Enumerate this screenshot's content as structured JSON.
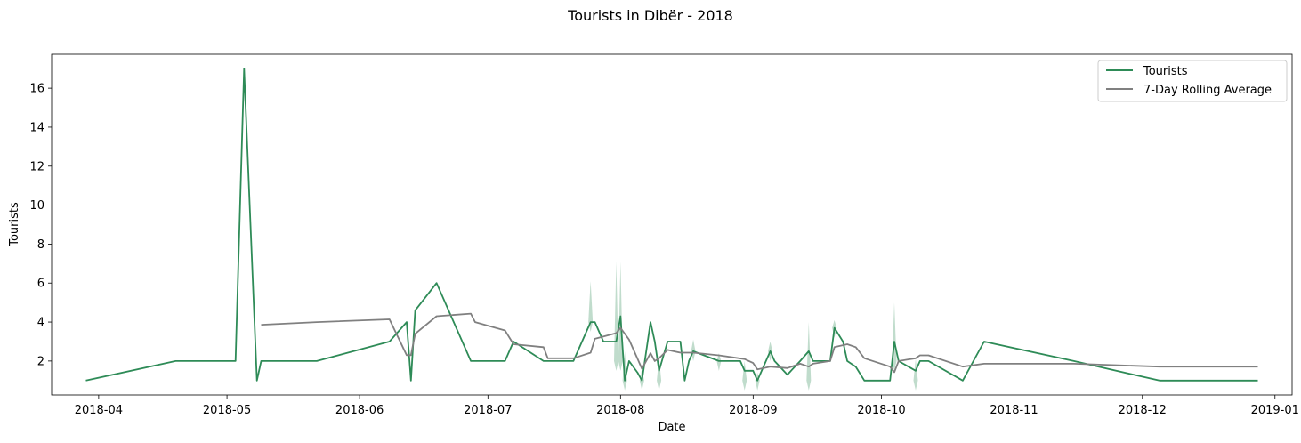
{
  "chart_data": {
    "type": "line",
    "title": "Tourists in Dibër - 2018",
    "xlabel": "Date",
    "ylabel": "Tourists",
    "xlim": [
      "2018-03-21",
      "2019-01-05"
    ],
    "ylim": [
      0.26,
      17.74
    ],
    "x_ticks": [
      "2018-04-01",
      "2018-05-01",
      "2018-06-01",
      "2018-07-01",
      "2018-08-01",
      "2018-09-01",
      "2018-10-01",
      "2018-11-01",
      "2018-12-01",
      "2019-01-01"
    ],
    "x_tick_labels": [
      "2018-04",
      "2018-05",
      "2018-06",
      "2018-07",
      "2018-08",
      "2018-09",
      "2018-10",
      "2018-11",
      "2018-12",
      "2019-01"
    ],
    "y_ticks": [
      2,
      4,
      6,
      8,
      10,
      12,
      14,
      16
    ],
    "grid": false,
    "legend": "top-right",
    "series": [
      {
        "name": "Tourists",
        "color": "#2e8b57",
        "points": [
          [
            "2018-03-29",
            1
          ],
          [
            "2018-04-19",
            2
          ],
          [
            "2018-05-03",
            2
          ],
          [
            "2018-05-05",
            17
          ],
          [
            "2018-05-08",
            1
          ],
          [
            "2018-05-09",
            2
          ],
          [
            "2018-05-22",
            2
          ],
          [
            "2018-06-08",
            3
          ],
          [
            "2018-06-12",
            4
          ],
          [
            "2018-06-13",
            1
          ],
          [
            "2018-06-14",
            4.6
          ],
          [
            "2018-06-19",
            6
          ],
          [
            "2018-06-27",
            2
          ],
          [
            "2018-07-05",
            2
          ],
          [
            "2018-07-07",
            3
          ],
          [
            "2018-07-14",
            2
          ],
          [
            "2018-07-21",
            2
          ],
          [
            "2018-07-25",
            4
          ],
          [
            "2018-07-26",
            4
          ],
          [
            "2018-07-28",
            3
          ],
          [
            "2018-07-31",
            3
          ],
          [
            "2018-08-01",
            4.3
          ],
          [
            "2018-08-02",
            1
          ],
          [
            "2018-08-03",
            2
          ],
          [
            "2018-08-05",
            1.4
          ],
          [
            "2018-08-06",
            1
          ],
          [
            "2018-08-08",
            4
          ],
          [
            "2018-08-09",
            3
          ],
          [
            "2018-08-10",
            1.5
          ],
          [
            "2018-08-12",
            3
          ],
          [
            "2018-08-15",
            3
          ],
          [
            "2018-08-16",
            1
          ],
          [
            "2018-08-17",
            2
          ],
          [
            "2018-08-18",
            2.5
          ],
          [
            "2018-08-24",
            2
          ],
          [
            "2018-08-29",
            2
          ],
          [
            "2018-08-30",
            1.5
          ],
          [
            "2018-09-01",
            1.5
          ],
          [
            "2018-09-02",
            1
          ],
          [
            "2018-09-05",
            2.5
          ],
          [
            "2018-09-06",
            2
          ],
          [
            "2018-09-09",
            1.3
          ],
          [
            "2018-09-12",
            2
          ],
          [
            "2018-09-14",
            2.5
          ],
          [
            "2018-09-15",
            2
          ],
          [
            "2018-09-19",
            2
          ],
          [
            "2018-09-20",
            3.7
          ],
          [
            "2018-09-22",
            3
          ],
          [
            "2018-09-23",
            2
          ],
          [
            "2018-09-25",
            1.7
          ],
          [
            "2018-09-27",
            1
          ],
          [
            "2018-10-03",
            1
          ],
          [
            "2018-10-04",
            3
          ],
          [
            "2018-10-05",
            2
          ],
          [
            "2018-10-09",
            1.5
          ],
          [
            "2018-10-10",
            2
          ],
          [
            "2018-10-12",
            2
          ],
          [
            "2018-10-20",
            1
          ],
          [
            "2018-10-25",
            3
          ],
          [
            "2018-11-15",
            2
          ],
          [
            "2018-12-05",
            1
          ],
          [
            "2018-12-28",
            1
          ]
        ],
        "band": [
          [
            "2018-07-25",
            4,
            6.1
          ],
          [
            "2018-07-31",
            2,
            7.1
          ],
          [
            "2018-08-01",
            2,
            7.1
          ],
          [
            "2018-08-02",
            1,
            2.5
          ],
          [
            "2018-08-06",
            1,
            1.6
          ],
          [
            "2018-08-10",
            1,
            2.2
          ],
          [
            "2018-08-18",
            2.5,
            3.1
          ],
          [
            "2018-08-24",
            2,
            2.4
          ],
          [
            "2018-08-30",
            1,
            2.0
          ],
          [
            "2018-09-02",
            1,
            1.4
          ],
          [
            "2018-09-05",
            2.5,
            3.0
          ],
          [
            "2018-09-14",
            1,
            4.0
          ],
          [
            "2018-09-20",
            3.7,
            4.1
          ],
          [
            "2018-10-04",
            2,
            5.0
          ],
          [
            "2018-10-09",
            1,
            2.1
          ]
        ]
      },
      {
        "name": "7-Day Rolling Average",
        "color": "#808080",
        "points": [
          [
            "2018-05-09",
            3.86
          ],
          [
            "2018-05-22",
            4.0
          ],
          [
            "2018-06-08",
            4.14
          ],
          [
            "2018-06-12",
            2.3
          ],
          [
            "2018-06-13",
            2.3
          ],
          [
            "2018-06-14",
            3.4
          ],
          [
            "2018-06-19",
            4.3
          ],
          [
            "2018-06-27",
            4.43
          ],
          [
            "2018-06-28",
            4.0
          ],
          [
            "2018-07-05",
            3.57
          ],
          [
            "2018-07-07",
            2.86
          ],
          [
            "2018-07-14",
            2.71
          ],
          [
            "2018-07-15",
            2.14
          ],
          [
            "2018-07-21",
            2.14
          ],
          [
            "2018-07-25",
            2.43
          ],
          [
            "2018-07-26",
            3.14
          ],
          [
            "2018-07-31",
            3.43
          ],
          [
            "2018-08-01",
            3.7
          ],
          [
            "2018-08-03",
            3.1
          ],
          [
            "2018-08-06",
            1.6
          ],
          [
            "2018-08-08",
            2.4
          ],
          [
            "2018-08-09",
            2.0
          ],
          [
            "2018-08-10",
            2.14
          ],
          [
            "2018-08-12",
            2.57
          ],
          [
            "2018-08-15",
            2.43
          ],
          [
            "2018-08-18",
            2.43
          ],
          [
            "2018-08-24",
            2.29
          ],
          [
            "2018-08-30",
            2.1
          ],
          [
            "2018-09-01",
            1.9
          ],
          [
            "2018-09-02",
            1.57
          ],
          [
            "2018-09-05",
            1.71
          ],
          [
            "2018-09-09",
            1.64
          ],
          [
            "2018-09-12",
            1.86
          ],
          [
            "2018-09-14",
            1.71
          ],
          [
            "2018-09-15",
            1.86
          ],
          [
            "2018-09-19",
            2.0
          ],
          [
            "2018-09-20",
            2.71
          ],
          [
            "2018-09-23",
            2.86
          ],
          [
            "2018-09-25",
            2.71
          ],
          [
            "2018-09-27",
            2.14
          ],
          [
            "2018-10-03",
            1.71
          ],
          [
            "2018-10-04",
            1.43
          ],
          [
            "2018-10-05",
            2.0
          ],
          [
            "2018-10-09",
            2.14
          ],
          [
            "2018-10-10",
            2.29
          ],
          [
            "2018-10-12",
            2.29
          ],
          [
            "2018-10-20",
            1.71
          ],
          [
            "2018-10-25",
            1.86
          ],
          [
            "2018-11-15",
            1.86
          ],
          [
            "2018-12-05",
            1.71
          ],
          [
            "2018-12-28",
            1.71
          ]
        ]
      }
    ]
  }
}
